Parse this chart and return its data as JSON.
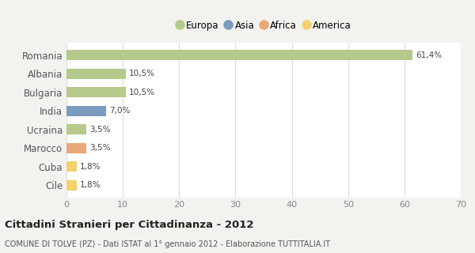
{
  "categories": [
    "Romania",
    "Albania",
    "Bulgaria",
    "India",
    "Ucraina",
    "Marocco",
    "Cuba",
    "Cile"
  ],
  "values": [
    61.4,
    10.5,
    10.5,
    7.0,
    3.5,
    3.5,
    1.8,
    1.8
  ],
  "labels": [
    "61,4%",
    "10,5%",
    "10,5%",
    "7,0%",
    "3,5%",
    "3,5%",
    "1,8%",
    "1,8%"
  ],
  "colors": [
    "#b5c98a",
    "#b5c98a",
    "#b5c98a",
    "#7b9cc0",
    "#b5c98a",
    "#e8a878",
    "#f5d06e",
    "#f5d06e"
  ],
  "legend_items": [
    {
      "label": "Europa",
      "color": "#b5c98a"
    },
    {
      "label": "Asia",
      "color": "#7b9cc0"
    },
    {
      "label": "Africa",
      "color": "#e8a878"
    },
    {
      "label": "America",
      "color": "#f5d06e"
    }
  ],
  "xlim": [
    0,
    70
  ],
  "xticks": [
    0,
    10,
    20,
    30,
    40,
    50,
    60,
    70
  ],
  "title": "Cittadini Stranieri per Cittadinanza - 2012",
  "subtitle": "COMUNE DI TOLVE (PZ) - Dati ISTAT al 1° gennaio 2012 - Elaborazione TUTTITALIA.IT",
  "background_color": "#f2f2ee",
  "plot_background": "#ffffff",
  "grid_color": "#dddddd",
  "bar_height": 0.55
}
